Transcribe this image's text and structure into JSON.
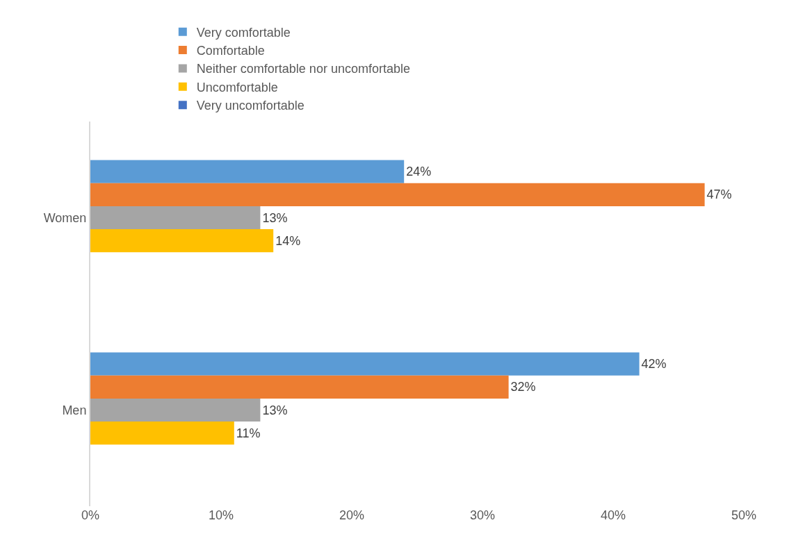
{
  "chart_data": {
    "type": "bar",
    "orientation": "horizontal",
    "categories": [
      "Women",
      "Men"
    ],
    "series": [
      {
        "name": "Very comfortable",
        "color": "#5b9bd5",
        "values": [
          24,
          42
        ],
        "value_labels": [
          "24%",
          "42%"
        ]
      },
      {
        "name": "Comfortable",
        "color": "#ed7d31",
        "values": [
          47,
          32
        ],
        "value_labels": [
          "47%",
          "32%"
        ]
      },
      {
        "name": "Neither comfortable nor uncomfortable",
        "color": "#a5a5a5",
        "values": [
          13,
          13
        ],
        "value_labels": [
          "13%",
          "13%"
        ]
      },
      {
        "name": "Uncomfortable",
        "color": "#ffc000",
        "values": [
          14,
          11
        ],
        "value_labels": [
          "14%",
          "11%"
        ]
      },
      {
        "name": "Very uncomfortable",
        "color": "#4472c4",
        "values": [
          null,
          null
        ],
        "value_labels": [
          null,
          null
        ]
      }
    ],
    "xlim": [
      0,
      50
    ],
    "xticks": [
      {
        "value": 0,
        "label": "0%"
      },
      {
        "value": 10,
        "label": "10%"
      },
      {
        "value": 20,
        "label": "20%"
      },
      {
        "value": 30,
        "label": "30%"
      },
      {
        "value": 40,
        "label": "40%"
      },
      {
        "value": 50,
        "label": "50%"
      }
    ],
    "grid": false,
    "legend": "top"
  }
}
